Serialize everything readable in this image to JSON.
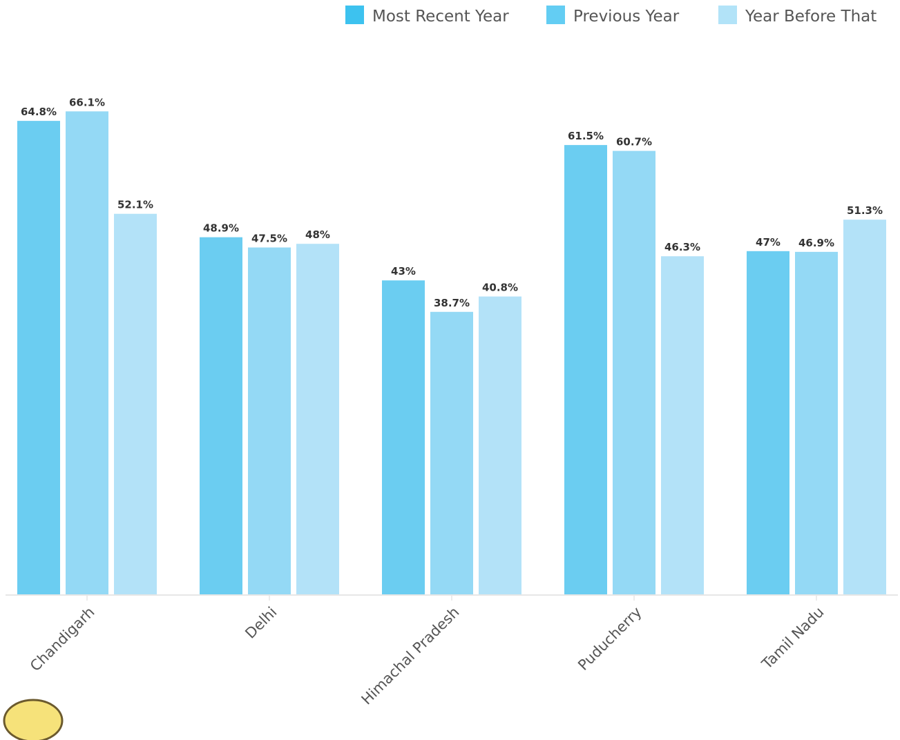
{
  "chart_data": {
    "type": "bar",
    "categories": [
      "Chandigarh",
      "Delhi",
      "Himachal Pradesh",
      "Puducherry",
      "Tamil Nadu"
    ],
    "series": [
      {
        "name": "Most Recent Year",
        "color": "#6bcdf1",
        "legend_color": "#3dc2ef",
        "values": [
          64.8,
          48.9,
          43,
          61.5,
          47
        ],
        "labels": [
          "64.8%",
          "48.9%",
          "43%",
          "61.5%",
          "47%"
        ]
      },
      {
        "name": "Previous Year",
        "color": "#94d9f5",
        "legend_color": "#63cdf3",
        "values": [
          66.1,
          47.5,
          38.7,
          60.7,
          46.9
        ],
        "labels": [
          "66.1%",
          "47.5%",
          "38.7%",
          "60.7%",
          "46.9%"
        ]
      },
      {
        "name": "Year Before That",
        "color": "#b3e2f8",
        "legend_color": "#b2e3f8",
        "values": [
          52.1,
          48,
          40.8,
          46.3,
          51.3
        ],
        "labels": [
          "52.1%",
          "48%",
          "40.8%",
          "46.3%",
          "51.3%"
        ]
      }
    ],
    "ylim": [
      0,
      73.4
    ],
    "legend": "top-right",
    "grid": false,
    "value_labels": true,
    "category_label_rotation": -45
  },
  "colors": {
    "axis": "#e6e6e6",
    "value_text": "#333333",
    "category_text": "#555555"
  },
  "decor": {
    "mascot_icon": "mascot-face-icon"
  }
}
